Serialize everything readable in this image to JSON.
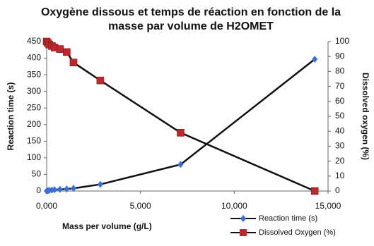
{
  "chart_data": {
    "type": "line",
    "title": "Oxygène dissous et temps de réaction en fonction de la masse par volume de H2OMET",
    "x_label": "Mass per volume  (g/L)",
    "y_label": "Reaction time (s)",
    "y2_label": "Dissolved oxygen (%)",
    "x": [
      0,
      70,
      140,
      280,
      420,
      710,
      1070,
      1430,
      2860,
      7140,
      14290
    ],
    "series": [
      {
        "name": "Reaction time (s)",
        "color": "#3a6fd8",
        "marker": "diamond",
        "values": [
          0,
          1,
          2,
          3,
          4,
          5,
          6,
          8,
          20,
          80,
          397
        ]
      },
      {
        "name": "Dissolved Oxygen (%)",
        "color": "#c0272d",
        "marker": "square",
        "axis": "y2",
        "values": [
          100,
          99,
          98,
          97,
          96,
          95,
          93,
          86,
          74,
          39,
          0
        ]
      }
    ],
    "xlim": [
      0,
      15000
    ],
    "xticks": [
      {
        "value": 0,
        "label": "0,000"
      },
      {
        "value": 5000,
        "label": "5,000"
      },
      {
        "value": 10000,
        "label": "10,000"
      },
      {
        "value": 15000,
        "label": "15,000"
      }
    ],
    "ylim": [
      0,
      450
    ],
    "yticks": [
      0,
      50,
      100,
      150,
      200,
      250,
      300,
      350,
      400,
      450
    ],
    "y2lim": [
      0,
      100
    ],
    "y2ticks": [
      0,
      10,
      20,
      30,
      40,
      50,
      60,
      70,
      80,
      90,
      100
    ],
    "grid": false,
    "legend_position": "bottom-right"
  }
}
